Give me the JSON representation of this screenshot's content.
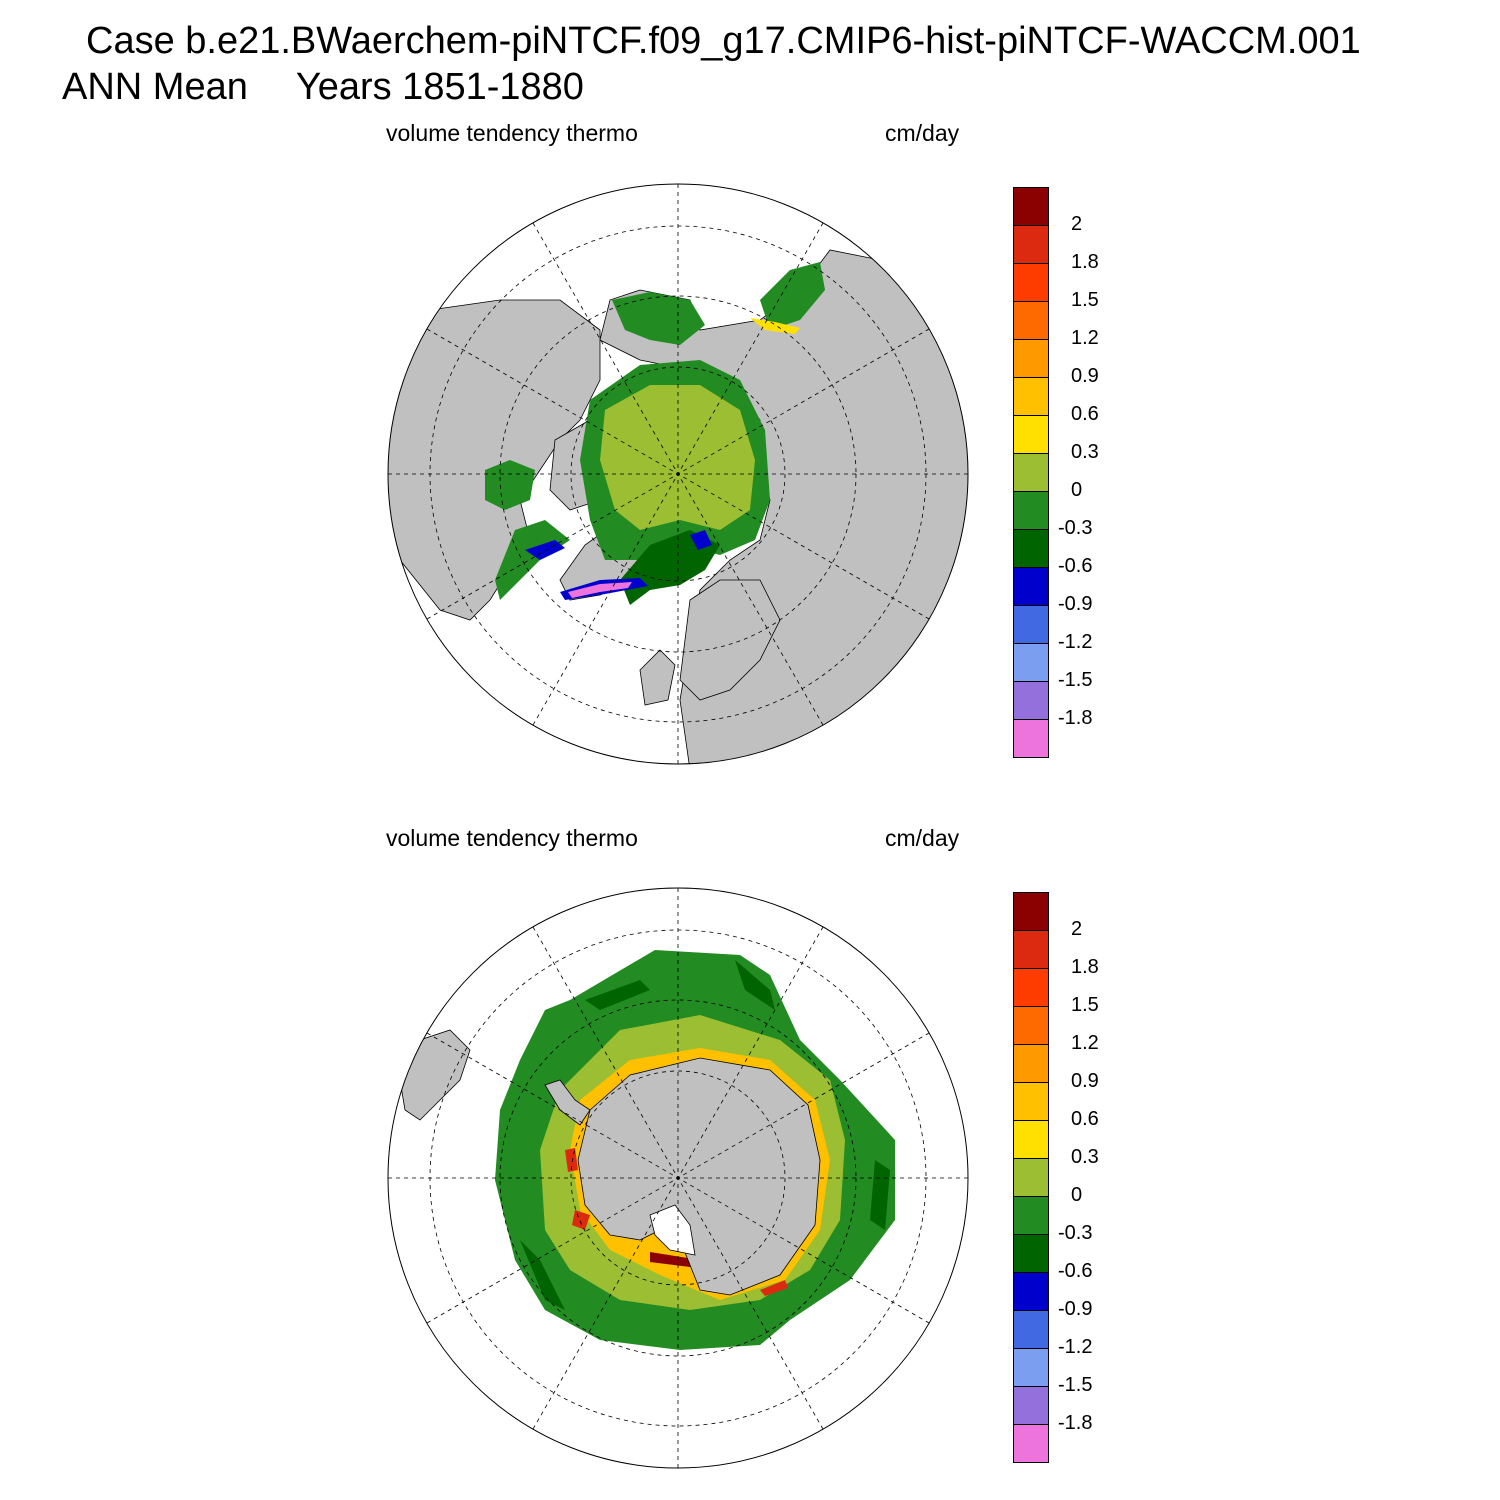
{
  "title": {
    "line1": "Case b.e21.BWaerchem-piNTCF.f09_g17.CMIP6-hist-piNTCF-WACCM.001",
    "season": "ANN Mean",
    "years": "Years 1851-1880"
  },
  "panels": [
    {
      "id": "north",
      "left_label": "volume tendency thermo",
      "right_label": "cm/day",
      "hemisphere": "Arctic"
    },
    {
      "id": "south",
      "left_label": "volume tendency thermo",
      "right_label": "cm/day",
      "hemisphere": "Antarctic"
    }
  ],
  "colorbar": {
    "levels": [
      "2",
      "1.8",
      "1.5",
      "1.2",
      "0.9",
      "0.6",
      "0.3",
      "0",
      "-0.3",
      "-0.6",
      "-0.9",
      "-1.2",
      "-1.5",
      "-1.8"
    ],
    "colors": [
      "#8b0000",
      "#dc2a10",
      "#ff3c00",
      "#ff6a00",
      "#ff9900",
      "#ffc000",
      "#ffe000",
      "#9bbe32",
      "#228b22",
      "#006400",
      "#0000cd",
      "#4169e1",
      "#7b9ef0",
      "#9370db",
      "#ee74dd"
    ]
  },
  "style": {
    "land": "#c0c0c0",
    "ocean": "#ffffff"
  }
}
